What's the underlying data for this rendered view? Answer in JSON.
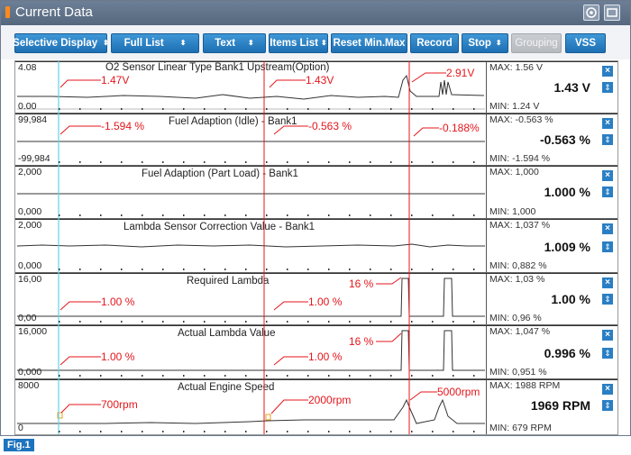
{
  "window": {
    "title": "Current Data"
  },
  "toolbar": {
    "buttons": [
      {
        "label": "Selective Display",
        "dropdown": true
      },
      {
        "label": "Full List",
        "dropdown": true
      },
      {
        "label": "Text",
        "dropdown": true
      },
      {
        "label": "Items List",
        "dropdown": true
      },
      {
        "label": "Reset Min.Max",
        "dropdown": false
      },
      {
        "label": "Record",
        "dropdown": false
      },
      {
        "label": "Stop",
        "dropdown": true
      },
      {
        "label": "Grouping",
        "dropdown": false,
        "disabled": true
      },
      {
        "label": "VSS",
        "dropdown": false
      }
    ]
  },
  "panels": [
    {
      "title": "O2 Sensor Linear Type Bank1 Upstream(Option)",
      "ymax": "4.08",
      "ymin": "0.00",
      "max": "MAX:  1.56 V",
      "min": "MIN:  1.24 V",
      "current": "1.43 V",
      "annotations": [
        "1.47V",
        "1.43V",
        "2.91V"
      ]
    },
    {
      "title": "Fuel Adaption (Idle) - Bank1",
      "ymax": "99,984",
      "ymin": "-99,984",
      "max": "MAX:  -0.563 %",
      "min": "MIN:  -1.594 %",
      "current": "-0.563 %",
      "annotations": [
        "-1.594 %",
        "-0.563 %",
        "-0.188%"
      ]
    },
    {
      "title": "Fuel Adaption (Part Load) - Bank1",
      "ymax": "2,000",
      "ymin": "0,000",
      "max": "MAX:  1,000",
      "min": "MIN:  1,000",
      "current": "1.000 %",
      "annotations": []
    },
    {
      "title": "Lambda Sensor Correction Value - Bank1",
      "ymax": "2,000",
      "ymin": "0,000",
      "max": "MAX:  1,037 %",
      "min": "MIN:  0,882 %",
      "current": "1.009 %",
      "annotations": []
    },
    {
      "title": "Required Lambda",
      "ymax": "16,00",
      "ymin": "0,00",
      "max": "MAX:  1,03 %",
      "min": "MIN:  0,96 %",
      "current": "1.00 %",
      "annotations": [
        "1.00 %",
        "1.00 %",
        "16 %"
      ]
    },
    {
      "title": "Actual Lambda Value",
      "ymax": "16,000",
      "ymin": "0,000",
      "max": "MAX:  1,047 %",
      "min": "MIN:  0,951 %",
      "current": "0.996 %",
      "annotations": [
        "1.00 %",
        "1.00 %",
        "16 %"
      ]
    },
    {
      "title": "Actual Engine Speed",
      "ymax": "8000",
      "ymin": "0",
      "max": "MAX:   1988 RPM",
      "min": "MIN:   679 RPM",
      "current": "1969 RPM",
      "annotations": [
        "700rpm",
        "2000rpm",
        "5000rpm"
      ]
    }
  ],
  "figure_tag": "Fig.1",
  "colors": {
    "accent": "#1e73be",
    "annotation": "#e4161c",
    "cursor_cyan": "#5fd6e6",
    "cursor_red": "#e4161c"
  }
}
